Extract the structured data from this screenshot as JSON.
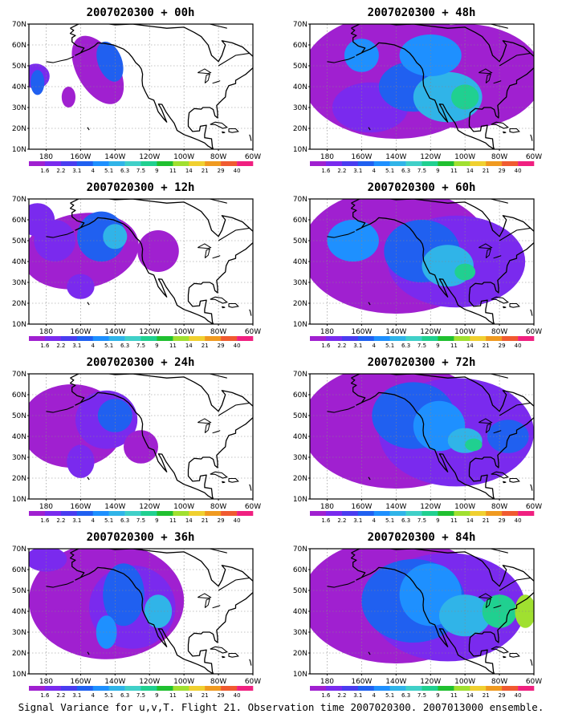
{
  "caption": "Signal Variance for u,v,T. Flight 21. Observation time 2007020300. 2007013000 ensemble.",
  "panels": [
    {
      "title": "2007020300 + 00h",
      "lead_hours": 0
    },
    {
      "title": "2007020300 + 48h",
      "lead_hours": 48
    },
    {
      "title": "2007020300 + 12h",
      "lead_hours": 12
    },
    {
      "title": "2007020300 + 60h",
      "lead_hours": 60
    },
    {
      "title": "2007020300 + 24h",
      "lead_hours": 24
    },
    {
      "title": "2007020300 + 72h",
      "lead_hours": 72
    },
    {
      "title": "2007020300 + 36h",
      "lead_hours": 36
    },
    {
      "title": "2007020300 + 84h",
      "lead_hours": 84
    }
  ],
  "map": {
    "lat_labels": [
      "10N",
      "20N",
      "30N",
      "40N",
      "50N",
      "60N",
      "70N"
    ],
    "lon_labels": [
      "180",
      "160W",
      "140W",
      "120W",
      "100W",
      "80W",
      "60W"
    ],
    "lat_range": [
      10,
      70
    ],
    "lon_range": [
      -190,
      -60
    ]
  },
  "legend": {
    "levels": [
      "1.6",
      "2.2",
      "3.1",
      "4",
      "5.1",
      "6.3",
      "7.5",
      "9",
      "11",
      "14",
      "21",
      "29",
      "40"
    ],
    "colors": [
      "#a020d0",
      "#7a2aee",
      "#4a3cf0",
      "#2060f0",
      "#1e90ff",
      "#30b4e8",
      "#40d0c8",
      "#20d090",
      "#20c030",
      "#a0e030",
      "#f0d030",
      "#f09a20",
      "#f05a30",
      "#f02080"
    ]
  }
}
